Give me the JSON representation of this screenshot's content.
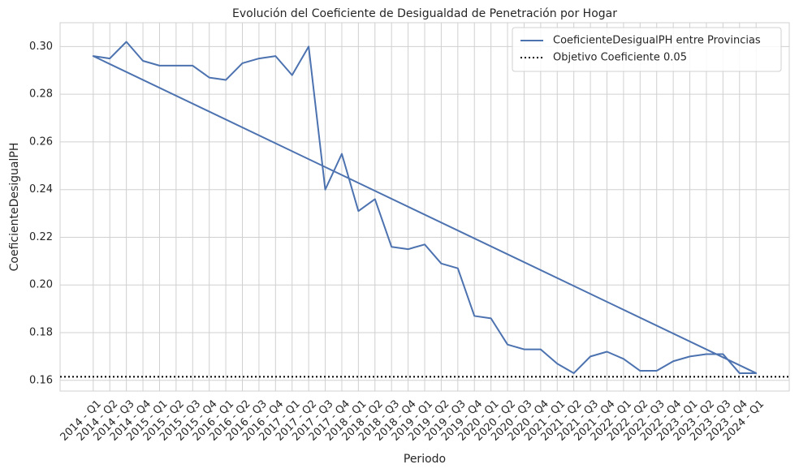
{
  "chart_data": {
    "type": "line",
    "title": "Evolución del Coeficiente de Desigualdad de Penetración por Hogar",
    "x_label": "Periodo",
    "y_label": "CoeficienteDesigualPH",
    "categories": [
      "2014 - Q1",
      "2014 - Q2",
      "2014 - Q3",
      "2014 - Q4",
      "2015 - Q1",
      "2015 - Q2",
      "2015 - Q3",
      "2015 - Q4",
      "2016 - Q1",
      "2016 - Q2",
      "2016 - Q3",
      "2016 - Q4",
      "2017 - Q1",
      "2017 - Q2",
      "2017 - Q3",
      "2017 - Q4",
      "2018 - Q1",
      "2018 - Q2",
      "2018 - Q3",
      "2018 - Q4",
      "2019 - Q1",
      "2019 - Q2",
      "2019 - Q3",
      "2019 - Q4",
      "2020 - Q1",
      "2020 - Q2",
      "2020 - Q3",
      "2020 - Q4",
      "2021 - Q1",
      "2021 - Q2",
      "2021 - Q3",
      "2021 - Q4",
      "2022 - Q1",
      "2022 - Q2",
      "2022 - Q3",
      "2022 - Q4",
      "2023 - Q1",
      "2023 - Q2",
      "2023 - Q3",
      "2023 - Q4",
      "2024 - Q1"
    ],
    "series": [
      {
        "name": "CoeficienteDesigualPH entre Provincias",
        "color": "#4c72b0",
        "closed": true,
        "values": [
          0.296,
          0.295,
          0.302,
          0.294,
          0.292,
          0.292,
          0.292,
          0.287,
          0.286,
          0.293,
          0.295,
          0.296,
          0.288,
          0.3,
          0.24,
          0.255,
          0.231,
          0.236,
          0.216,
          0.215,
          0.217,
          0.209,
          0.207,
          0.187,
          0.186,
          0.175,
          0.173,
          0.173,
          0.167,
          0.163,
          0.17,
          0.172,
          0.169,
          0.164,
          0.164,
          0.168,
          0.17,
          0.171,
          0.171,
          0.163,
          0.163
        ]
      }
    ],
    "reference_lines": [
      {
        "name": "Objetivo Coeficiente 0.05",
        "value": 0.1615,
        "color": "#000000",
        "style": "dotted"
      }
    ],
    "ylim": [
      0.1555,
      0.31
    ],
    "yticks": [
      0.16,
      0.18,
      {
        "value": 0.2,
        "label": "0.20"
      },
      0.22,
      0.24,
      0.26,
      0.28,
      {
        "value": 0.3,
        "label": "0.30"
      }
    ],
    "grid": true,
    "legend": "upper right"
  }
}
